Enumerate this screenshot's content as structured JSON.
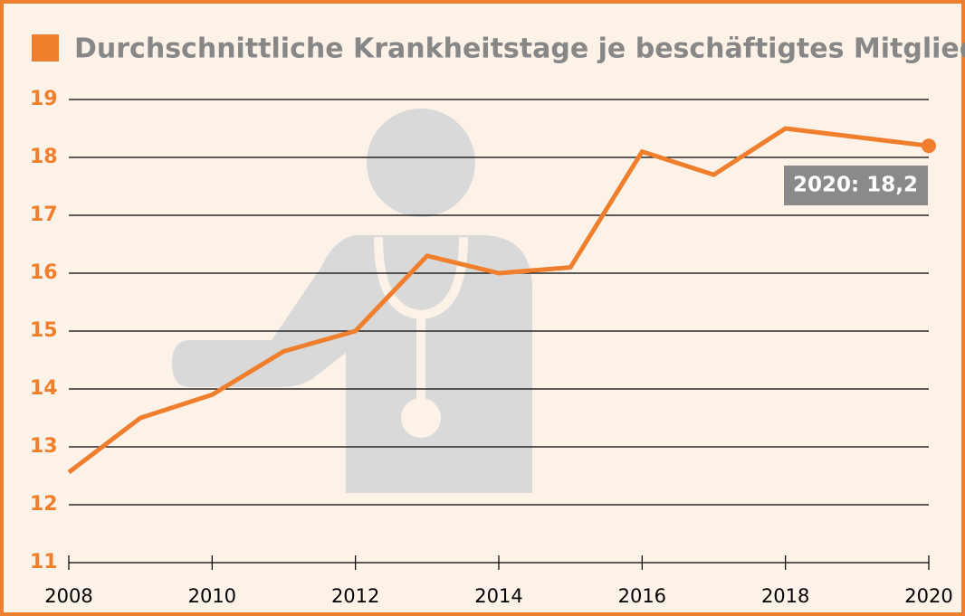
{
  "chart_data": {
    "type": "line",
    "title": "Durchschnittliche Krankheitstage je beschäftigtes Mitglied",
    "x": [
      2008,
      2009,
      2010,
      2011,
      2012,
      2013,
      2014,
      2015,
      2016,
      2017,
      2018,
      2019,
      2020
    ],
    "values": [
      12.56,
      13.5,
      13.9,
      14.65,
      15.0,
      16.3,
      16.0,
      16.1,
      18.1,
      17.7,
      18.5,
      18.35,
      18.2
    ],
    "color": "#f07f2d",
    "xlim": [
      2008,
      2020
    ],
    "xticks": [
      2008,
      2010,
      2012,
      2014,
      2016,
      2018,
      2020
    ],
    "ylim": [
      11,
      19
    ],
    "yticks": [
      11,
      12,
      13,
      14,
      15,
      16,
      17,
      18,
      19
    ],
    "grid": true,
    "annotation": "2020: 18,2"
  }
}
